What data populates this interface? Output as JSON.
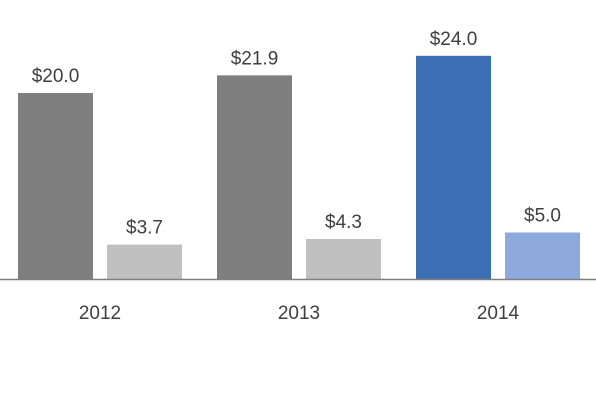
{
  "chart_data": {
    "type": "bar",
    "categories": [
      "2012",
      "2013",
      "2014"
    ],
    "series": [
      {
        "values": [
          20.0,
          21.9,
          24.0
        ],
        "colors": [
          "#7f7f7f",
          "#7f7f7f",
          "#3c6eb4"
        ]
      },
      {
        "values": [
          3.7,
          4.3,
          5.0
        ],
        "colors": [
          "#c0c0c0",
          "#c0c0c0",
          "#8eaadc"
        ]
      }
    ],
    "data_labels": [
      [
        "$20.0",
        "$21.9",
        "$24.0"
      ],
      [
        "$3.7",
        "$4.3",
        "$5.0"
      ]
    ],
    "title": "",
    "xlabel": "",
    "ylabel": "",
    "ylim": [
      0,
      30
    ],
    "grid": false,
    "axis_color": "#7f7f7f"
  }
}
